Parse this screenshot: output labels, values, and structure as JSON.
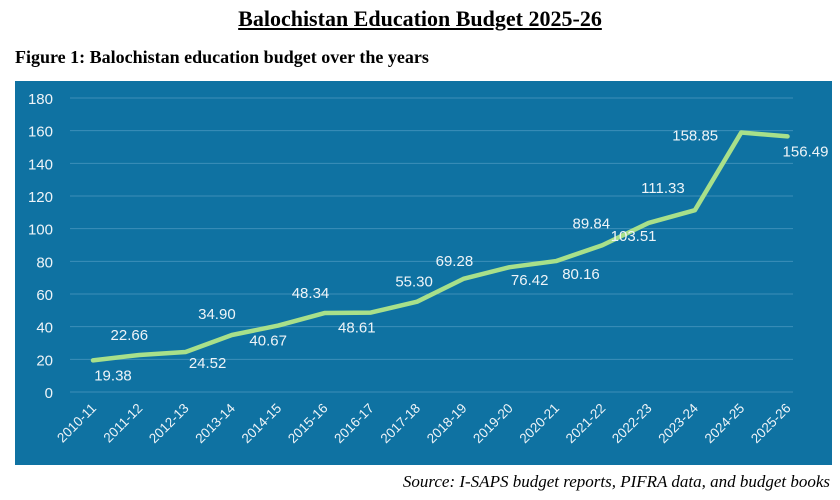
{
  "header": {
    "title": "Balochistan Education Budget 2025-26",
    "figure_caption": "Figure 1: Balochistan education budget over the years"
  },
  "footer": {
    "source": "Source: I-SAPS budget reports, PIFRA data, and budget books"
  },
  "colors": {
    "background": "#0f72a2",
    "line": "#a8e08a",
    "grid": "#3d8fb8",
    "text": "#eef4f8"
  },
  "chart_data": {
    "type": "line",
    "title": "Balochistan education budget over the years",
    "xlabel": "",
    "ylabel": "",
    "categories": [
      "2010-11",
      "2011-12",
      "2012-13",
      "2013-14",
      "2014-15",
      "2015-16",
      "2016-17",
      "2017-18",
      "2018-19",
      "2019-20",
      "2020-21",
      "2021-22",
      "2022-23",
      "2023-24",
      "2024-25",
      "2025-26"
    ],
    "values": [
      19.38,
      22.66,
      24.52,
      34.9,
      40.67,
      48.34,
      48.61,
      55.3,
      69.28,
      76.42,
      80.16,
      89.84,
      103.51,
      111.33,
      158.85,
      156.49
    ],
    "data_labels": [
      "19.38",
      "22.66",
      "24.52",
      "34.90",
      "40.67",
      "48.34",
      "48.61",
      "55.30",
      "69.28",
      "76.42",
      "80.16",
      "89.84",
      "103.51",
      "111.33",
      "158.85",
      "156.49"
    ],
    "yticks": [
      "0",
      "20",
      "40",
      "60",
      "80",
      "100",
      "120",
      "140",
      "160",
      "180"
    ],
    "ylim": [
      0,
      180
    ],
    "grid": true,
    "legend": "none"
  }
}
